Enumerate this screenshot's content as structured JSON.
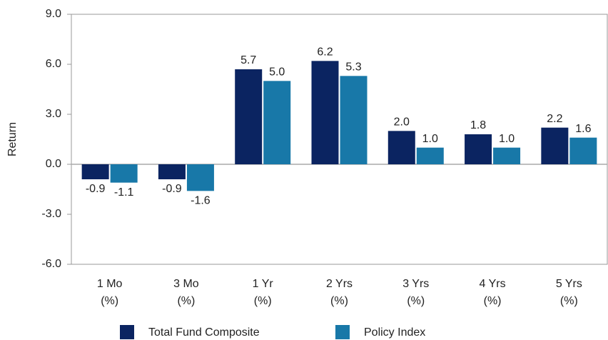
{
  "chart_data": {
    "type": "bar",
    "y_label": "Return",
    "categories": [
      "1 Mo\n(%)",
      "3 Mo\n(%)",
      "1 Yr\n(%)",
      "2 Yrs\n(%)",
      "3 Yrs\n(%)",
      "4 Yrs\n(%)",
      "5 Yrs\n(%)"
    ],
    "series": [
      {
        "name": "Total Fund Composite",
        "color": "#0b2461",
        "values": [
          -0.9,
          -0.9,
          5.7,
          6.2,
          2.0,
          1.8,
          2.2
        ],
        "value_labels": [
          "-0.9",
          "-0.9",
          "5.7",
          "6.2",
          "2.0",
          "1.8",
          "2.2"
        ]
      },
      {
        "name": "Policy Index",
        "color": "#1878a8",
        "values": [
          -1.1,
          -1.6,
          5.0,
          5.3,
          1.0,
          1.0,
          1.6
        ],
        "value_labels": [
          "-1.1",
          "-1.6",
          "5.0",
          "5.3",
          "1.0",
          "1.0",
          "1.6"
        ]
      }
    ],
    "ylim": [
      -6,
      9
    ],
    "yticks": [
      {
        "value": -6,
        "label": "-6.0"
      },
      {
        "value": -3,
        "label": "-3.0"
      },
      {
        "value": 0,
        "label": "0.0"
      },
      {
        "value": 3,
        "label": "3.0"
      },
      {
        "value": 6,
        "label": "6.0"
      },
      {
        "value": 9,
        "label": "9.0"
      }
    ],
    "legend": "bottom"
  }
}
